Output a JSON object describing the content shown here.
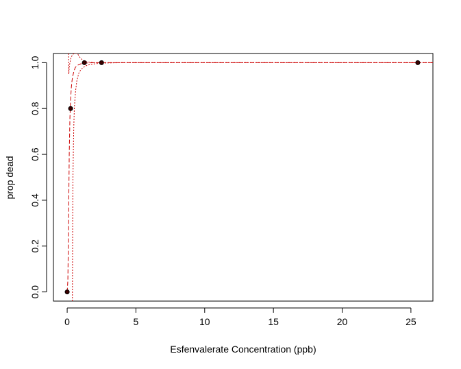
{
  "chart_data": {
    "type": "scatter",
    "title": "",
    "xlabel": "Esfenvalerate Concentration (ppb)",
    "ylabel": "prop dead",
    "xlim": [
      -1.0,
      26.6
    ],
    "ylim": [
      -0.04,
      1.04
    ],
    "xticks": [
      0,
      5,
      10,
      15,
      20,
      25
    ],
    "yticks": [
      0.0,
      0.2,
      0.4,
      0.6,
      0.8,
      1.0
    ],
    "xtick_labels": [
      "0",
      "5",
      "10",
      "15",
      "20",
      "25"
    ],
    "ytick_labels": [
      "0.0",
      "0.2",
      "0.4",
      "0.6",
      "0.8",
      "1.0"
    ],
    "points": [
      {
        "x": 0.0,
        "y": 0.0
      },
      {
        "x": 0.25,
        "y": 0.8
      },
      {
        "x": 1.25,
        "y": 1.0
      },
      {
        "x": 2.5,
        "y": 1.0
      },
      {
        "x": 25.5,
        "y": 1.0
      }
    ],
    "fit_line": {
      "x": [
        0.0,
        0.05,
        0.1,
        0.15,
        0.2,
        0.25,
        0.3,
        0.35,
        0.4,
        0.5,
        0.6,
        0.8,
        1.0,
        1.5,
        2.0,
        3.0,
        5.0,
        10.0,
        20.0,
        26.6
      ],
      "y": [
        0.0,
        0.05,
        0.3,
        0.6,
        0.76,
        0.84,
        0.89,
        0.92,
        0.94,
        0.965,
        0.98,
        0.99,
        0.995,
        0.999,
        1.0,
        1.0,
        1.0,
        1.0,
        1.0,
        1.0
      ]
    },
    "ci_upper": {
      "x": [
        0.1,
        0.11,
        0.12,
        0.14,
        0.17,
        0.2,
        0.25,
        0.3,
        0.4,
        0.5,
        0.6,
        0.7,
        0.8,
        0.9,
        1.0,
        1.2,
        1.5,
        2.0,
        3.0,
        5.0,
        10.0,
        26.6
      ],
      "y": [
        1.04,
        1.0,
        0.95,
        0.97,
        0.99,
        1.0,
        1.015,
        1.025,
        1.035,
        1.04,
        1.04,
        1.04,
        1.035,
        1.025,
        1.018,
        1.008,
        1.003,
        1.0,
        1.0,
        1.0,
        1.0,
        1.0
      ]
    },
    "ci_lower": {
      "x": [
        0.38,
        0.39,
        0.4,
        0.42,
        0.45,
        0.48,
        0.52,
        0.6,
        0.7,
        0.85,
        1.0,
        1.3,
        1.7,
        2.5,
        4.0,
        8.0,
        15.0,
        26.6
      ],
      "y": [
        -0.04,
        0.1,
        0.3,
        0.5,
        0.62,
        0.72,
        0.8,
        0.87,
        0.92,
        0.955,
        0.97,
        0.985,
        0.993,
        0.998,
        1.0,
        1.0,
        1.0,
        1.0
      ]
    },
    "colors": {
      "points": "#000000",
      "fit_line": "#cc0000",
      "ci_lines": "#cc0000",
      "frame": "#000000"
    },
    "grid": false,
    "legend": "none"
  }
}
